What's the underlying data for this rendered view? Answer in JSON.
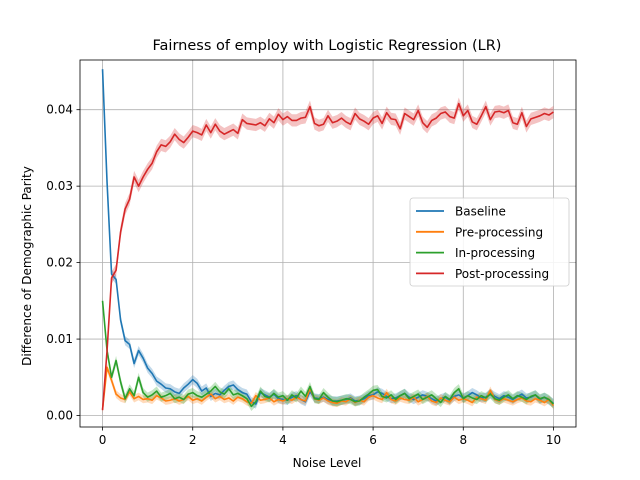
{
  "chart_data": {
    "type": "line",
    "title": "Fairness of employ with Logistic Regression (LR)",
    "xlabel": "Noise Level",
    "ylabel": "Difference of Demographic Parity",
    "xlim": [
      -0.5,
      10.5
    ],
    "ylim": [
      -0.0015,
      0.0465
    ],
    "xticks": [
      0,
      2,
      4,
      6,
      8,
      10
    ],
    "xtick_labels": [
      "0",
      "2",
      "4",
      "6",
      "8",
      "10"
    ],
    "yticks": [
      0.0,
      0.01,
      0.02,
      0.03,
      0.04
    ],
    "ytick_labels": [
      "0.00",
      "0.01",
      "0.02",
      "0.03",
      "0.04"
    ],
    "grid": true,
    "legend_position": "center-right",
    "x": [
      0.0,
      0.1,
      0.2,
      0.3,
      0.4,
      0.5,
      0.6,
      0.7,
      0.8,
      0.9,
      1.0,
      1.1,
      1.2,
      1.3,
      1.4,
      1.5,
      1.6,
      1.7,
      1.8,
      1.9,
      2.0,
      2.1,
      2.2,
      2.3,
      2.4,
      2.5,
      2.6,
      2.7,
      2.8,
      2.9,
      3.0,
      3.1,
      3.2,
      3.3,
      3.4,
      3.5,
      3.6,
      3.7,
      3.8,
      3.9,
      4.0,
      4.1,
      4.2,
      4.3,
      4.4,
      4.5,
      4.6,
      4.7,
      4.8,
      4.9,
      5.0,
      5.1,
      5.2,
      5.3,
      5.4,
      5.5,
      5.6,
      5.7,
      5.8,
      5.9,
      6.0,
      6.1,
      6.2,
      6.3,
      6.4,
      6.5,
      6.6,
      6.7,
      6.8,
      6.9,
      7.0,
      7.1,
      7.2,
      7.3,
      7.4,
      7.5,
      7.6,
      7.7,
      7.8,
      7.9,
      8.0,
      8.1,
      8.2,
      8.3,
      8.4,
      8.5,
      8.6,
      8.7,
      8.8,
      8.9,
      9.0,
      9.1,
      9.2,
      9.3,
      9.4,
      9.5,
      9.6,
      9.7,
      9.8,
      9.9,
      10.0
    ],
    "series": [
      {
        "name": "Baseline",
        "color": "#1f77b4",
        "band": 0.0006,
        "values": [
          0.0453,
          0.0305,
          0.0185,
          0.0178,
          0.0125,
          0.0098,
          0.0093,
          0.0068,
          0.0085,
          0.0075,
          0.0062,
          0.0055,
          0.0045,
          0.0041,
          0.0036,
          0.0035,
          0.0031,
          0.0029,
          0.0036,
          0.0041,
          0.0047,
          0.0042,
          0.0032,
          0.0036,
          0.0025,
          0.0029,
          0.0027,
          0.0033,
          0.0038,
          0.004,
          0.0034,
          0.003,
          0.0028,
          0.0018,
          0.0015,
          0.003,
          0.0027,
          0.0024,
          0.0028,
          0.0022,
          0.0021,
          0.002,
          0.0024,
          0.0026,
          0.0021,
          0.0018,
          0.0031,
          0.0023,
          0.0022,
          0.0024,
          0.0021,
          0.0019,
          0.0019,
          0.002,
          0.0021,
          0.0023,
          0.0019,
          0.002,
          0.0022,
          0.0026,
          0.0027,
          0.0031,
          0.0029,
          0.0025,
          0.0022,
          0.0023,
          0.0026,
          0.0029,
          0.0024,
          0.0021,
          0.0024,
          0.0027,
          0.0025,
          0.0022,
          0.0019,
          0.0022,
          0.0024,
          0.002,
          0.0025,
          0.0027,
          0.0023,
          0.0026,
          0.003,
          0.0027,
          0.0023,
          0.0024,
          0.0029,
          0.0025,
          0.0022,
          0.0026,
          0.0024,
          0.0021,
          0.0025,
          0.0028,
          0.0023,
          0.0024,
          0.0027,
          0.0021,
          0.0024,
          0.002,
          0.0016
        ]
      },
      {
        "name": "Pre-processing",
        "color": "#ff7f0e",
        "band": 0.0005,
        "values": [
          0.0008,
          0.0063,
          0.0046,
          0.0028,
          0.0023,
          0.0021,
          0.0031,
          0.0022,
          0.0025,
          0.0021,
          0.0022,
          0.002,
          0.0026,
          0.0023,
          0.0019,
          0.002,
          0.0022,
          0.0019,
          0.0021,
          0.0025,
          0.002,
          0.0022,
          0.0019,
          0.0024,
          0.0028,
          0.0022,
          0.0025,
          0.0021,
          0.0023,
          0.0019,
          0.0024,
          0.0022,
          0.0018,
          0.0016,
          0.0026,
          0.002,
          0.0021,
          0.0023,
          0.0018,
          0.0021,
          0.0019,
          0.0022,
          0.002,
          0.0024,
          0.0021,
          0.0019,
          0.0035,
          0.0022,
          0.002,
          0.0023,
          0.0019,
          0.0017,
          0.0016,
          0.0019,
          0.0018,
          0.0022,
          0.0017,
          0.002,
          0.0018,
          0.0024,
          0.0026,
          0.0023,
          0.0021,
          0.003,
          0.0021,
          0.0019,
          0.0023,
          0.0021,
          0.002,
          0.0024,
          0.0018,
          0.0021,
          0.0025,
          0.0019,
          0.0017,
          0.0023,
          0.002,
          0.0018,
          0.0024,
          0.002,
          0.0022,
          0.002,
          0.0017,
          0.0024,
          0.0022,
          0.002,
          0.0033,
          0.0021,
          0.0019,
          0.0022,
          0.002,
          0.0018,
          0.0021,
          0.0023,
          0.0019,
          0.0018,
          0.0022,
          0.002,
          0.0017,
          0.0021,
          0.0013
        ]
      },
      {
        "name": "In-processing",
        "color": "#2ca02c",
        "band": 0.0006,
        "values": [
          0.015,
          0.0085,
          0.005,
          0.0072,
          0.0044,
          0.0022,
          0.0035,
          0.0026,
          0.005,
          0.003,
          0.0024,
          0.0027,
          0.0032,
          0.0024,
          0.0026,
          0.0029,
          0.0022,
          0.0024,
          0.0021,
          0.0028,
          0.003,
          0.0026,
          0.0024,
          0.0028,
          0.0032,
          0.0038,
          0.0031,
          0.0028,
          0.0035,
          0.0027,
          0.0029,
          0.0026,
          0.0022,
          0.0012,
          0.0018,
          0.0032,
          0.0025,
          0.0023,
          0.0029,
          0.0024,
          0.0026,
          0.002,
          0.0027,
          0.0023,
          0.0032,
          0.0025,
          0.0038,
          0.0022,
          0.0021,
          0.003,
          0.0024,
          0.0019,
          0.0018,
          0.002,
          0.0022,
          0.0021,
          0.0018,
          0.0019,
          0.0024,
          0.0028,
          0.0033,
          0.0034,
          0.0025,
          0.0023,
          0.0027,
          0.0021,
          0.0026,
          0.0029,
          0.0022,
          0.0025,
          0.0028,
          0.0021,
          0.0024,
          0.0027,
          0.0022,
          0.0017,
          0.0025,
          0.0021,
          0.003,
          0.0035,
          0.0022,
          0.0026,
          0.0023,
          0.0021,
          0.0026,
          0.0023,
          0.0028,
          0.0022,
          0.002,
          0.0024,
          0.0027,
          0.0022,
          0.0026,
          0.0024,
          0.0021,
          0.0025,
          0.0027,
          0.0022,
          0.0024,
          0.0021,
          0.0015
        ]
      },
      {
        "name": "Post-processing",
        "color": "#d62728",
        "band": 0.0008,
        "values": [
          0.0007,
          0.0085,
          0.018,
          0.019,
          0.024,
          0.027,
          0.0283,
          0.0312,
          0.03,
          0.0312,
          0.0322,
          0.033,
          0.0345,
          0.0354,
          0.0352,
          0.0358,
          0.0368,
          0.0361,
          0.0357,
          0.0364,
          0.0372,
          0.037,
          0.0367,
          0.038,
          0.037,
          0.0381,
          0.0372,
          0.0368,
          0.0371,
          0.0374,
          0.0369,
          0.0387,
          0.0382,
          0.0381,
          0.038,
          0.0383,
          0.0379,
          0.0388,
          0.0383,
          0.0394,
          0.0387,
          0.0391,
          0.0386,
          0.0386,
          0.0389,
          0.039,
          0.0404,
          0.0382,
          0.0379,
          0.0381,
          0.0392,
          0.0383,
          0.0385,
          0.0389,
          0.0384,
          0.0381,
          0.0395,
          0.0388,
          0.0385,
          0.0381,
          0.0389,
          0.0392,
          0.0382,
          0.0396,
          0.0388,
          0.0387,
          0.0375,
          0.0395,
          0.0391,
          0.0387,
          0.0399,
          0.0383,
          0.0377,
          0.0386,
          0.0389,
          0.0395,
          0.0397,
          0.0391,
          0.0389,
          0.0408,
          0.0392,
          0.0399,
          0.0384,
          0.0381,
          0.0392,
          0.0404,
          0.0387,
          0.0397,
          0.0398,
          0.0396,
          0.0399,
          0.0383,
          0.0381,
          0.0396,
          0.0378,
          0.0388,
          0.039,
          0.0392,
          0.0395,
          0.0393,
          0.0397
        ]
      }
    ]
  }
}
